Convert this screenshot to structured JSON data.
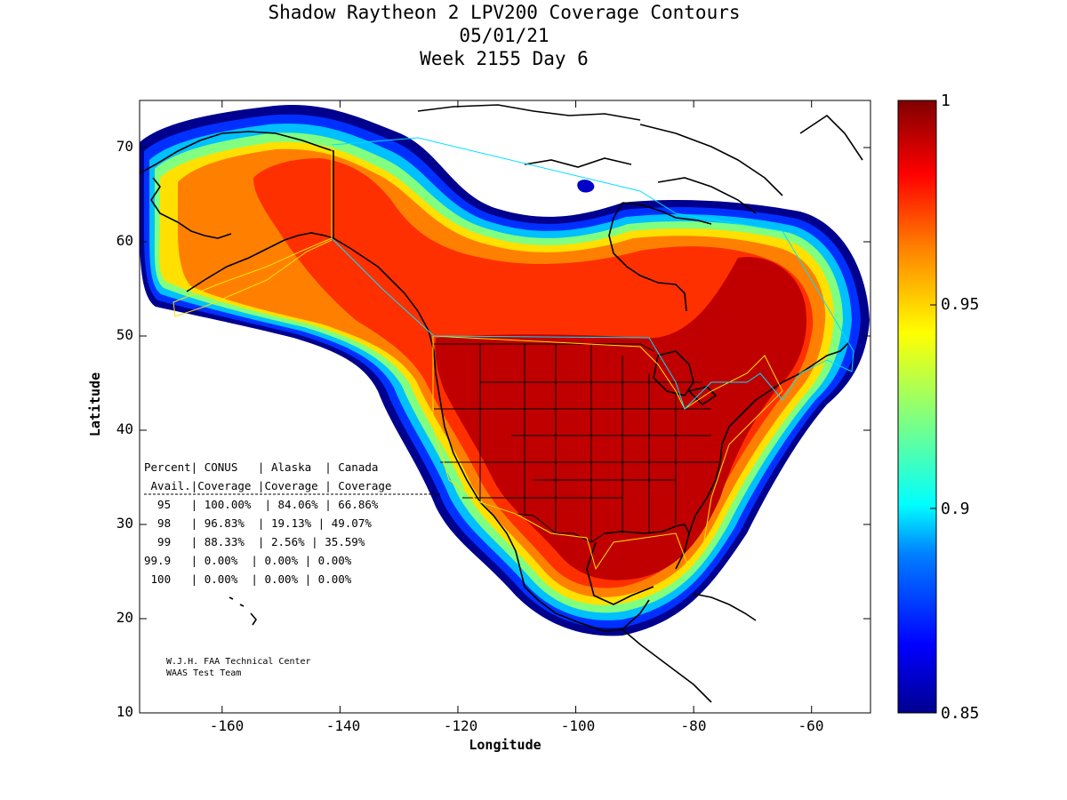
{
  "title": {
    "line1": "Shadow Raytheon 2 LPV200 Coverage Contours",
    "line2": "05/01/21",
    "line3": "Week 2155 Day 6"
  },
  "map": {
    "xlabel": "Longitude",
    "ylabel": "Latitude",
    "xlim": [
      -174,
      -50
    ],
    "ylim": [
      10,
      75
    ],
    "xticks": [
      "-160",
      "-140",
      "-120",
      "-100",
      "-80",
      "-60"
    ],
    "yticks": [
      "10",
      "20",
      "30",
      "40",
      "50",
      "60",
      "70"
    ]
  },
  "colorbar": {
    "range": [
      0.85,
      1
    ],
    "ticks": [
      "1",
      "0.95",
      "0.9",
      "0.85"
    ],
    "colormap": [
      "#00008f",
      "#0000ff",
      "#0080ff",
      "#00ffff",
      "#80ff80",
      "#ffff00",
      "#ff8000",
      "#ff0000",
      "#800000"
    ]
  },
  "table": {
    "header1": "Percent| CONUS   | Alaska  | Canada",
    "header2": " Avail.|Coverage |Coverage | Coverage",
    "rows": [
      "  95   | 100.00%  | 84.06% | 66.86%",
      "  98   | 96.83%  | 19.13% | 49.07%",
      "  99   | 88.33%  | 2.56% | 35.59%",
      "99.9   | 0.00%  | 0.00% | 0.00%",
      " 100   | 0.00%  | 0.00% | 0.00%"
    ]
  },
  "credits": {
    "line1": "W.J.H. FAA Technical Center",
    "line2": "WAAS Test Team"
  }
}
